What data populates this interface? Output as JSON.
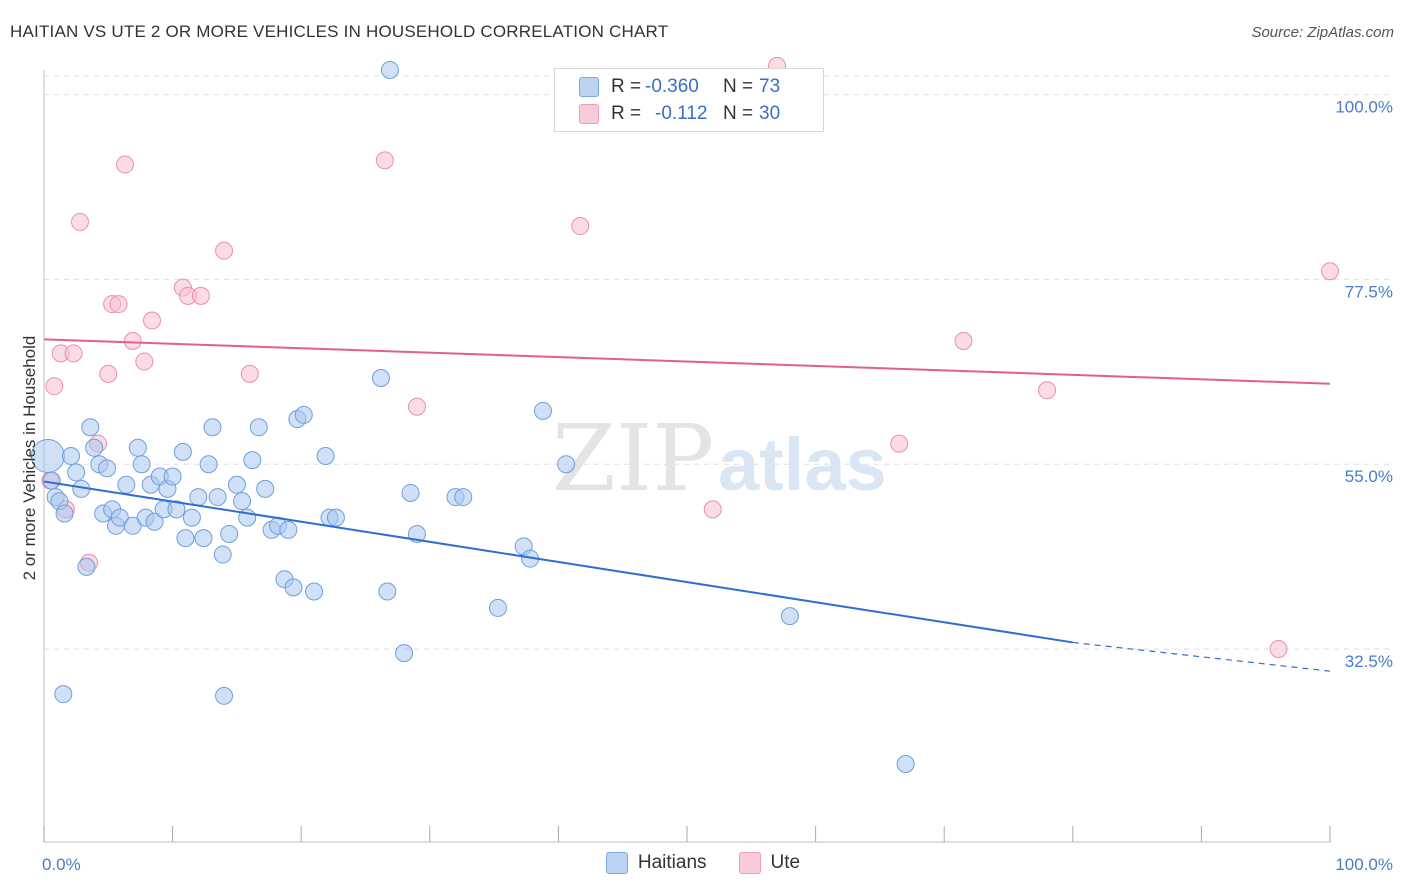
{
  "title": "HAITIAN VS UTE 2 OR MORE VEHICLES IN HOUSEHOLD CORRELATION CHART",
  "source": "Source: ZipAtlas.com",
  "watermark": {
    "part1": "ZIP",
    "part2": "atlas"
  },
  "legend": {
    "haitians": {
      "r_label": "R =",
      "r_value": "-0.360",
      "n_label": "N =",
      "n_value": "73"
    },
    "ute": {
      "r_label": "R =",
      "r_value": "-0.112",
      "n_label": "N =",
      "n_value": "30"
    }
  },
  "bottom_legend": {
    "haitians": "Haitians",
    "ute": "Ute"
  },
  "colors": {
    "haitians_fill": "#aac6ee",
    "haitians_stroke": "#6f9fdc",
    "haitians_line": "#2e6fd0",
    "ute_fill": "#f7bfd0",
    "ute_stroke": "#eb8fab",
    "ute_line": "#e0608a",
    "grid": "#dddddd",
    "tick_label": "#4a7cc9"
  },
  "chart_data": {
    "type": "scatter",
    "title": "HAITIAN VS UTE 2 OR MORE VEHICLES IN HOUSEHOLD CORRELATION CHART",
    "xlabel": "",
    "ylabel": "2 or more Vehicles in Household",
    "xlim": [
      0,
      100
    ],
    "ylim": [
      9,
      103
    ],
    "x_tick_labels": [
      "0.0%",
      "100.0%"
    ],
    "y_ticks": [
      32.5,
      55.0,
      77.5,
      100.0
    ],
    "y_tick_labels": [
      "32.5%",
      "55.0%",
      "77.5%",
      "100.0%"
    ],
    "grid": true,
    "legend_position": "top-center",
    "series": [
      {
        "name": "Haitians",
        "r": -0.36,
        "n": 73,
        "trend": {
          "x0": 0,
          "y0": 52.9,
          "x1": 80,
          "y1": 33.3,
          "dashed_to_x": 100,
          "dashed_to_y": 29.8
        },
        "points": [
          [
            0.3,
            56.0,
            16
          ],
          [
            0.6,
            53.0,
            8
          ],
          [
            0.9,
            51.0,
            8
          ],
          [
            1.2,
            50.5,
            8
          ],
          [
            1.6,
            49.0,
            8
          ],
          [
            2.1,
            56.0,
            8
          ],
          [
            2.5,
            54.0,
            8
          ],
          [
            2.9,
            52.0,
            8
          ],
          [
            3.3,
            42.5,
            8
          ],
          [
            3.6,
            59.5,
            8
          ],
          [
            3.9,
            57.0,
            8
          ],
          [
            4.3,
            55.0,
            8
          ],
          [
            4.6,
            49.0,
            8
          ],
          [
            4.9,
            54.5,
            8
          ],
          [
            5.3,
            49.5,
            8
          ],
          [
            5.6,
            47.5,
            8
          ],
          [
            5.9,
            48.5,
            8
          ],
          [
            6.4,
            52.5,
            8
          ],
          [
            6.9,
            47.5,
            8
          ],
          [
            7.3,
            57.0,
            8
          ],
          [
            7.6,
            55.0,
            8
          ],
          [
            7.9,
            48.5,
            8
          ],
          [
            8.3,
            52.5,
            8
          ],
          [
            8.6,
            48.0,
            8
          ],
          [
            9.0,
            53.5,
            8
          ],
          [
            9.3,
            49.5,
            8
          ],
          [
            9.6,
            52.0,
            8
          ],
          [
            10.0,
            53.5,
            8
          ],
          [
            10.3,
            49.5,
            8
          ],
          [
            10.8,
            56.5,
            8
          ],
          [
            11.0,
            46.0,
            8
          ],
          [
            11.5,
            48.5,
            8
          ],
          [
            12.0,
            51.0,
            8
          ],
          [
            12.4,
            46.0,
            8
          ],
          [
            12.8,
            55.0,
            8
          ],
          [
            13.1,
            59.5,
            8
          ],
          [
            13.5,
            51.0,
            8
          ],
          [
            13.9,
            44.0,
            8
          ],
          [
            14.4,
            46.5,
            8
          ],
          [
            15.0,
            52.5,
            8
          ],
          [
            15.4,
            50.5,
            8
          ],
          [
            15.8,
            48.5,
            8
          ],
          [
            16.2,
            55.5,
            8
          ],
          [
            16.7,
            59.5,
            8
          ],
          [
            17.2,
            52.0,
            8
          ],
          [
            17.7,
            47.0,
            8
          ],
          [
            18.2,
            47.5,
            8
          ],
          [
            18.7,
            41.0,
            8
          ],
          [
            19.0,
            47.0,
            8
          ],
          [
            19.4,
            40.0,
            8
          ],
          [
            19.7,
            60.5,
            8
          ],
          [
            20.2,
            61.0,
            8
          ],
          [
            21.0,
            39.5,
            8
          ],
          [
            21.9,
            56.0,
            8
          ],
          [
            22.2,
            48.5,
            8
          ],
          [
            22.7,
            48.5,
            8
          ],
          [
            26.2,
            65.5,
            8
          ],
          [
            26.7,
            39.5,
            8
          ],
          [
            28.0,
            32.0,
            8
          ],
          [
            28.5,
            51.5,
            8
          ],
          [
            29.0,
            46.5,
            8
          ],
          [
            32.0,
            51.0,
            8
          ],
          [
            32.6,
            51.0,
            8
          ],
          [
            35.3,
            37.5,
            8
          ],
          [
            37.3,
            45.0,
            8
          ],
          [
            37.8,
            43.5,
            8
          ],
          [
            38.8,
            61.5,
            8
          ],
          [
            40.6,
            55.0,
            8
          ],
          [
            58.0,
            36.5,
            8
          ],
          [
            67.0,
            18.5,
            8
          ],
          [
            1.5,
            27.0,
            8
          ],
          [
            14.0,
            26.8,
            8
          ],
          [
            26.9,
            103.0,
            8
          ]
        ]
      },
      {
        "name": "Ute",
        "r": -0.112,
        "n": 30,
        "trend": {
          "x0": 0,
          "y0": 70.2,
          "x1": 100,
          "y1": 64.8
        },
        "points": [
          [
            0.5,
            53.0,
            8
          ],
          [
            0.8,
            64.5,
            8
          ],
          [
            1.3,
            68.5,
            8
          ],
          [
            1.7,
            49.5,
            8
          ],
          [
            2.3,
            68.5,
            8
          ],
          [
            2.8,
            84.5,
            8
          ],
          [
            3.5,
            43.0,
            8
          ],
          [
            4.2,
            57.5,
            8
          ],
          [
            5.0,
            66.0,
            8
          ],
          [
            5.3,
            74.5,
            8
          ],
          [
            5.8,
            74.5,
            8
          ],
          [
            6.3,
            91.5,
            8
          ],
          [
            6.9,
            70.0,
            8
          ],
          [
            7.8,
            67.5,
            8
          ],
          [
            8.4,
            72.5,
            8
          ],
          [
            10.8,
            76.5,
            8
          ],
          [
            11.2,
            75.5,
            8
          ],
          [
            12.2,
            75.5,
            8
          ],
          [
            14.0,
            81.0,
            8
          ],
          [
            16.0,
            66.0,
            8
          ],
          [
            26.5,
            92.0,
            8
          ],
          [
            29.0,
            62.0,
            8
          ],
          [
            41.7,
            84.0,
            8
          ],
          [
            52.0,
            49.5,
            8
          ],
          [
            66.5,
            57.5,
            8
          ],
          [
            71.5,
            70.0,
            8
          ],
          [
            78.0,
            64.0,
            8
          ],
          [
            96.0,
            32.5,
            8
          ],
          [
            100.0,
            78.5,
            8
          ],
          [
            57.0,
            103.5,
            8
          ]
        ]
      }
    ]
  }
}
